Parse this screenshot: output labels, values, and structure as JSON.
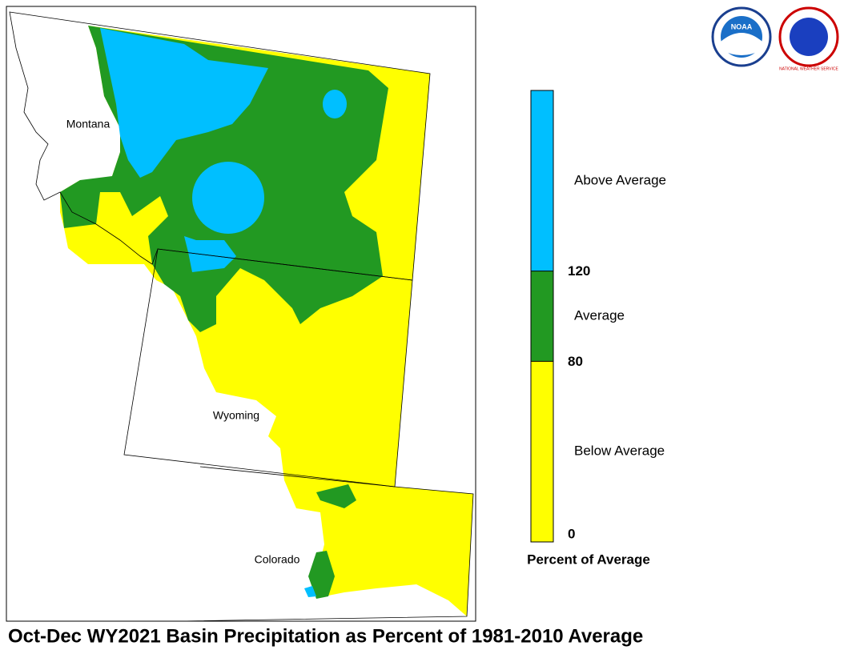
{
  "title": "Oct-Dec WY2021 Basin Precipitation as Percent of 1981-2010 Average",
  "logos": {
    "noaa": "NOAA",
    "nws": "NATIONAL WEATHER SERVICE"
  },
  "map": {
    "states": [
      "Montana",
      "Wyoming",
      "Colorado"
    ]
  },
  "legend": {
    "title": "Percent of Average",
    "range": [
      0,
      200
    ],
    "ticks": [
      0,
      80,
      120
    ],
    "classes": [
      {
        "label": "Below Average",
        "color": "#ffff00"
      },
      {
        "label": "Average",
        "color": "#229922"
      },
      {
        "label": "Above Average",
        "color": "#00bfff"
      }
    ]
  }
}
